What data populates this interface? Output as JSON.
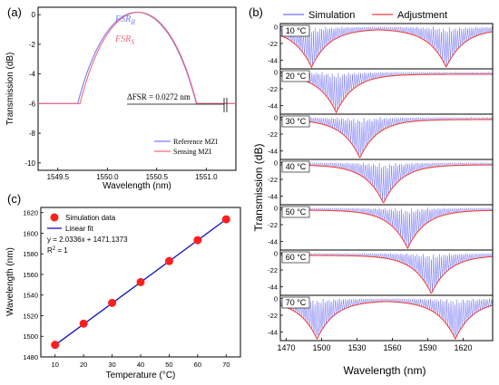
{
  "colors": {
    "simulation": "#6f6ff5",
    "adjustment": "#f04040",
    "reference": "#7b7bf0",
    "sensing": "#f06a7a",
    "fit_line": "#1010c8",
    "marker": "#ff1f1f"
  },
  "chart_data": [
    {
      "id": "a",
      "panel_label": "(a)",
      "type": "line",
      "xlabel": "Wavelength (nm)",
      "ylabel": "Transmission (dB)",
      "xticks": [
        "1549.5",
        "1550.0",
        "1550.5",
        "1551.0"
      ],
      "xlim": [
        1549.3,
        1551.3
      ],
      "yticks": [
        "0",
        "-2",
        "-4",
        "-6",
        "-8",
        "-10"
      ],
      "ylim": [
        -10.5,
        0.5
      ],
      "series": [
        {
          "name": "Reference MZI",
          "center": 1550.3,
          "fsr": 1.7272,
          "floor_db": -6.0
        },
        {
          "name": "Sensing MZI",
          "center": 1550.3136,
          "fsr": 1.7,
          "floor_db": -6.0
        }
      ],
      "annotations": {
        "fsr_r_base": "FSR",
        "fsr_r_sub": "R",
        "fsr_s_base": "FSR",
        "fsr_s_sub": "S",
        "delta": "ΔFSR = 0.0272 nm"
      },
      "legend_position": "bottom-right"
    },
    {
      "id": "b",
      "panel_label": "(b)",
      "type": "line",
      "xlabel": "Wavelength (nm)",
      "ylabel": "Transmission (dB)",
      "xticks": [
        "1470",
        "1500",
        "1530",
        "1560",
        "1590",
        "1620"
      ],
      "xlim": [
        1465,
        1645
      ],
      "yticks": [
        "0",
        "-22",
        "-44"
      ],
      "ylim": [
        -55,
        4
      ],
      "legend": [
        "Simulation",
        "Adjustment"
      ],
      "legend_position": "top",
      "panels": [
        {
          "label": "10 °C",
          "dips_nm": [
            1491.4,
            1605.6
          ]
        },
        {
          "label": "20 °C",
          "dips_nm": [
            1512.4
          ]
        },
        {
          "label": "30 °C",
          "dips_nm": [
            1532.4
          ]
        },
        {
          "label": "40 °C",
          "dips_nm": [
            1552.4
          ]
        },
        {
          "label": "50 °C",
          "dips_nm": [
            1572.9
          ]
        },
        {
          "label": "60 °C",
          "dips_nm": [
            1593.0
          ]
        },
        {
          "label": "70 °C",
          "dips_nm": [
            1496.1,
            1613.3
          ]
        }
      ]
    },
    {
      "id": "c",
      "panel_label": "(c)",
      "type": "scatter",
      "xlabel": "Temperature (°C)",
      "ylabel": "Wavelength (nm)",
      "x": [
        10,
        20,
        30,
        40,
        50,
        60,
        70
      ],
      "y": [
        1491.7,
        1512.3,
        1532.4,
        1552.6,
        1573.0,
        1593.3,
        1613.5
      ],
      "xlim": [
        5,
        75
      ],
      "ylim": [
        1480,
        1625
      ],
      "xticks": [
        "10",
        "20",
        "30",
        "40",
        "50",
        "60",
        "70"
      ],
      "yticks": [
        "1480",
        "1500",
        "1520",
        "1540",
        "1560",
        "1580",
        "1600",
        "1620"
      ],
      "fit": {
        "slope": 2.0336,
        "intercept": 1471.1373
      },
      "legend": [
        "Simulation data",
        "Linear fit"
      ],
      "equation": "y = 2.0336x + 1471.1373",
      "r2_base": "R",
      "r2_sup": "2",
      "r2_value": " = 1",
      "legend_position": "top-left"
    }
  ]
}
